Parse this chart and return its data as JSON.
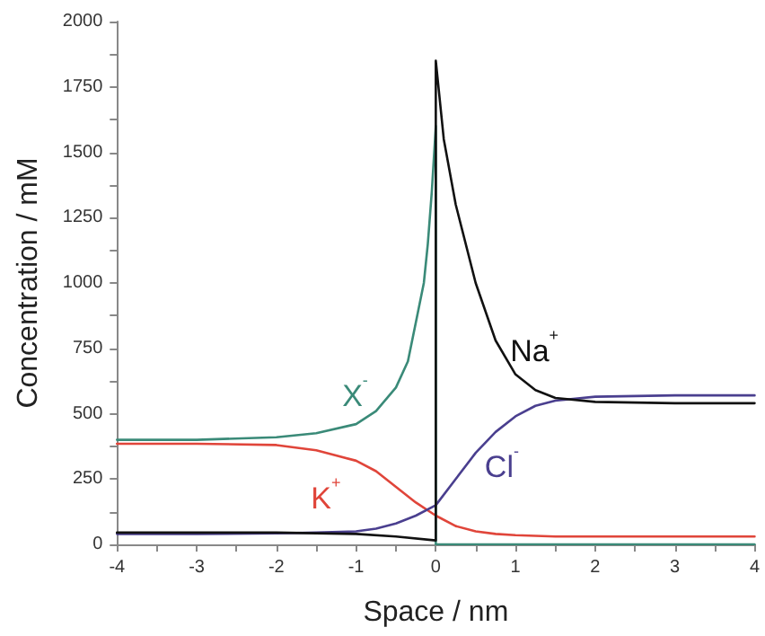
{
  "chart_data": {
    "type": "line",
    "xlabel": "Space / nm",
    "ylabel": "Concentration / mM",
    "xlim": [
      -4,
      4
    ],
    "xticks": [
      -4,
      -3,
      -2,
      -1,
      0,
      1,
      2,
      3,
      4
    ],
    "ylim": [
      0,
      2000
    ],
    "yticks": [
      0,
      250,
      500,
      750,
      1000,
      1250,
      1500,
      1750,
      2000
    ],
    "grid": false,
    "marker": "none",
    "line_style": "solid",
    "series": [
      {
        "name": "X$^{-}$",
        "color": "#3a8a78",
        "x": [
          -4,
          -3,
          -2,
          -1.5,
          -1,
          -0.75,
          -0.5,
          -0.35,
          -0.25,
          -0.15,
          -0.1,
          -0.05,
          0,
          0,
          0.5,
          1,
          2,
          3,
          4
        ],
        "values": [
          400,
          400,
          410,
          425,
          460,
          510,
          600,
          700,
          850,
          1000,
          1150,
          1350,
          1600,
          0,
          0,
          0,
          0,
          0,
          0
        ]
      },
      {
        "name": "K$^{+}$",
        "color": "#e0453a",
        "x": [
          -4,
          -3,
          -2,
          -1.5,
          -1,
          -0.75,
          -0.5,
          -0.25,
          0,
          0.25,
          0.5,
          0.75,
          1,
          1.5,
          2,
          3,
          4
        ],
        "values": [
          385,
          385,
          380,
          360,
          320,
          280,
          220,
          160,
          110,
          70,
          50,
          40,
          35,
          30,
          30,
          30,
          30
        ]
      },
      {
        "name": "Cl$^{-}$",
        "color": "#4a3f8f",
        "x": [
          -4,
          -3,
          -2,
          -1.5,
          -1,
          -0.75,
          -0.5,
          -0.25,
          0,
          0.25,
          0.5,
          0.75,
          1,
          1.25,
          1.5,
          2,
          3,
          4
        ],
        "values": [
          40,
          40,
          42,
          45,
          50,
          60,
          80,
          110,
          150,
          250,
          350,
          430,
          490,
          530,
          550,
          565,
          570,
          570
        ]
      },
      {
        "name": "Na$^{+}$",
        "color": "#111111",
        "x": [
          -4,
          -3,
          -2,
          -1,
          -0.5,
          0,
          0,
          0.1,
          0.25,
          0.5,
          0.75,
          1,
          1.25,
          1.5,
          2,
          3,
          4
        ],
        "values": [
          45,
          45,
          45,
          40,
          30,
          15,
          1850,
          1550,
          1300,
          1000,
          780,
          650,
          590,
          560,
          545,
          540,
          540
        ]
      }
    ]
  }
}
